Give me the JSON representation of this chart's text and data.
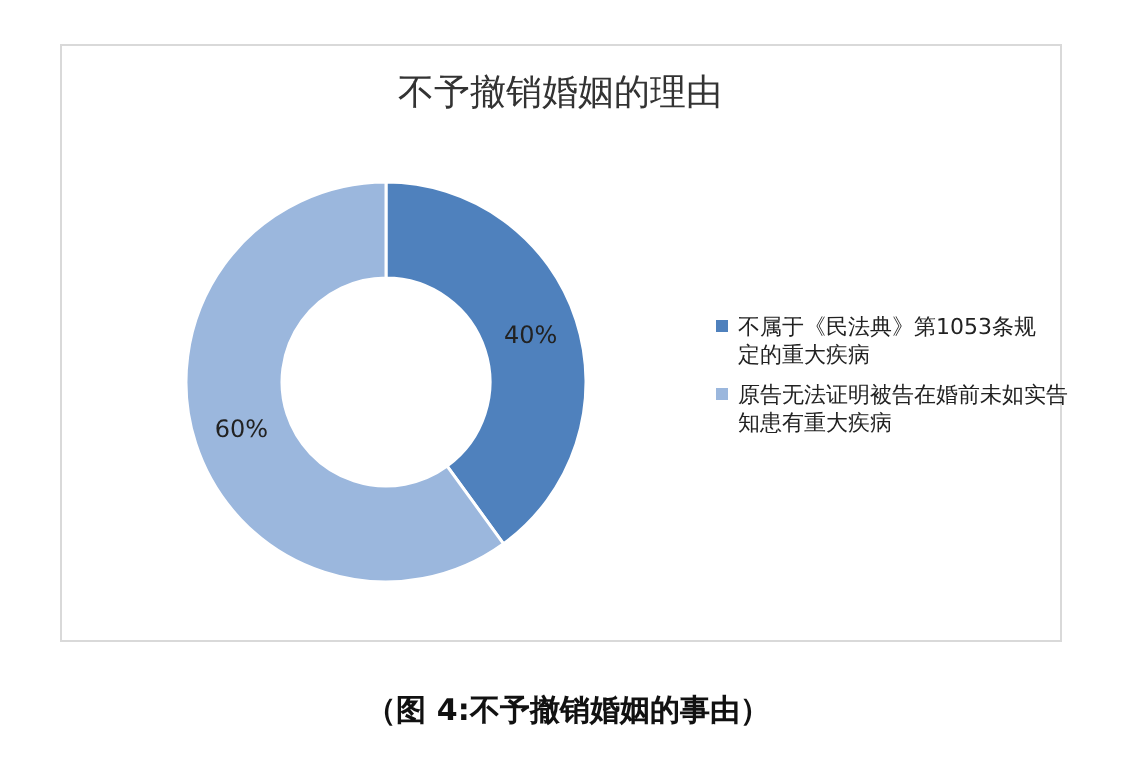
{
  "chart_data": {
    "type": "donut",
    "title": "不予撤销婚姻的理由",
    "categories": [
      "不属于《民法典》第1053条规定的重大疾病",
      "原告无法证明被告在婚前未如实告知患有重大疾病"
    ],
    "values": [
      40,
      60
    ],
    "colors": [
      "#4f81bd",
      "#9bb7dd"
    ],
    "value_labels": [
      "40%",
      "60%"
    ],
    "legend": "right",
    "annotations": [
      "（图 4:不予撤销婚姻的事由）"
    ]
  }
}
